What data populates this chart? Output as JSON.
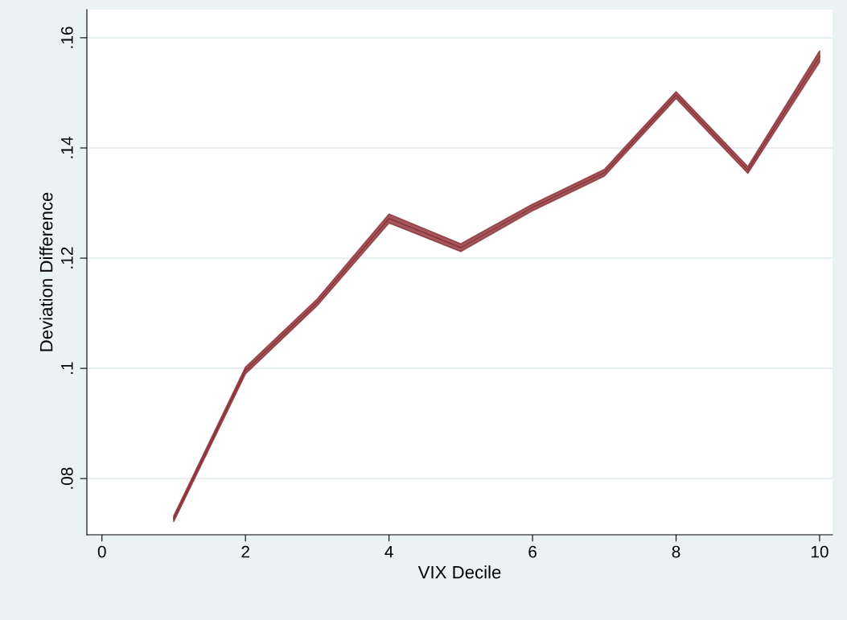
{
  "chart_data": {
    "type": "line",
    "xlabel": "VIX Decile",
    "ylabel": "Deviation Difference",
    "x": [
      1,
      2,
      3,
      4,
      5,
      6,
      7,
      8,
      9,
      10
    ],
    "series": [
      {
        "color": "#8b2e35",
        "values": [
          0.0727,
          0.0996,
          0.112,
          0.1272,
          0.1219,
          0.1292,
          0.1355,
          0.1496,
          0.136,
          0.1566
        ],
        "lower": [
          0.0722,
          0.099,
          0.1114,
          0.1264,
          0.1212,
          0.1286,
          0.1349,
          0.149,
          0.1354,
          0.1556
        ],
        "upper": [
          0.0732,
          0.1002,
          0.1126,
          0.128,
          0.1226,
          0.1298,
          0.1361,
          0.1502,
          0.1366,
          0.1576
        ]
      }
    ],
    "xlim": [
      -0.21,
      10.18
    ],
    "ylim": [
      0.0698,
      0.1651
    ],
    "xticks": [
      0,
      2,
      4,
      6,
      8,
      10
    ],
    "yticks": [
      {
        "value": 0.08,
        "label": ".08"
      },
      {
        "value": 0.1,
        "label": ".1"
      },
      {
        "value": 0.12,
        "label": ".12"
      },
      {
        "value": 0.14,
        "label": ".14"
      },
      {
        "value": 0.16,
        "label": ".16"
      }
    ],
    "grid": "y"
  }
}
